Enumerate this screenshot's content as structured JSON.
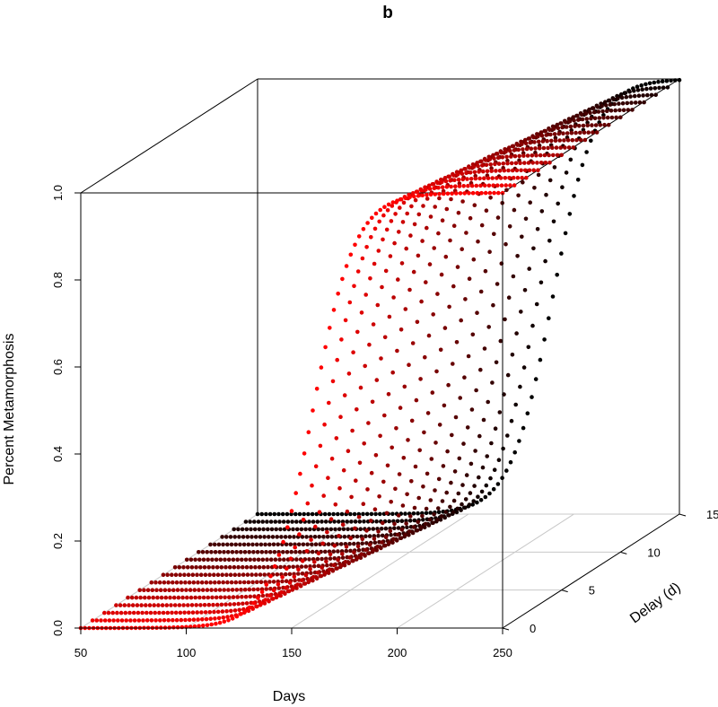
{
  "chart_data": {
    "panel_label": "b",
    "type": "scatter3d",
    "xlabel": "Days",
    "ylabel": "Delay (d)",
    "zlabel": "Percent Metamorphosis",
    "xlim": [
      50,
      250
    ],
    "ylim": [
      0,
      15
    ],
    "zlim": [
      0,
      1
    ],
    "x_ticks": [
      "50",
      "100",
      "150",
      "200",
      "250"
    ],
    "y_ticks": [
      "0",
      "5",
      "10",
      "15"
    ],
    "z_ticks": [
      "0.0",
      "0.2",
      "0.4",
      "0.6",
      "0.8",
      "1.0"
    ],
    "curve_model": "logistic",
    "curve_midpoint_days_at_delay_0": 160,
    "curve_midpoint_shift_per_delay_day": 2,
    "curve_steepness": 0.1,
    "delay_values": [
      0,
      1,
      2,
      3,
      4,
      5,
      6,
      7,
      8,
      9,
      10,
      11,
      12,
      13,
      14,
      15
    ],
    "day_step": 2,
    "color_delay_0": "#ff0000",
    "color_delay_15": "#000000",
    "box_color": "#000000",
    "grid_color": "#c8c8c8"
  }
}
